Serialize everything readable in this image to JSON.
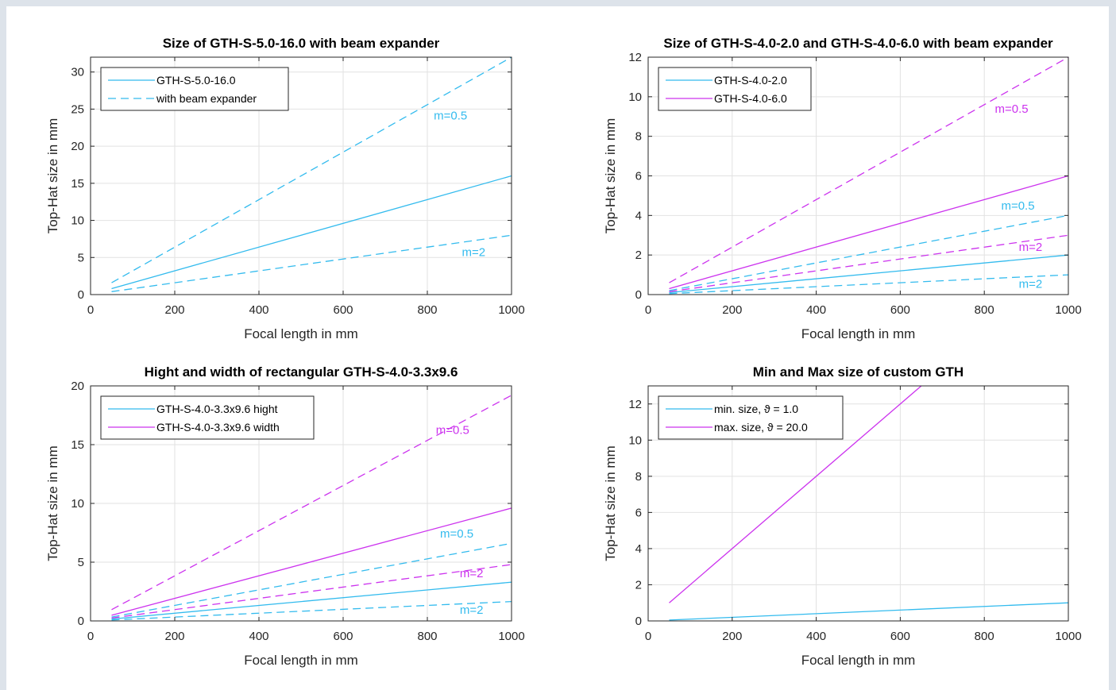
{
  "colors": {
    "cyan": "#33bbee",
    "magenta": "#cc33ee",
    "grid": "#e2e2e2",
    "axis": "#262626"
  },
  "chart_data": [
    {
      "type": "line",
      "title": "Size of GTH-S-5.0-16.0 with beam expander",
      "xlabel": "Focal length in mm",
      "ylabel": "Top-Hat size in mm",
      "xlim": [
        0,
        1000
      ],
      "ylim": [
        0,
        32
      ],
      "xticks": [
        0,
        200,
        400,
        600,
        800,
        1000
      ],
      "yticks": [
        0,
        5,
        10,
        15,
        20,
        25,
        30
      ],
      "grid": true,
      "legend_position": "top-left",
      "legend": [
        {
          "label": "GTH-S-5.0-16.0",
          "color": "cyan",
          "style": "solid"
        },
        {
          "label": "with beam expander",
          "color": "cyan",
          "style": "dashed"
        }
      ],
      "series": [
        {
          "name": "GTH-S-5.0-16.0",
          "color": "cyan",
          "style": "solid",
          "x": [
            50,
            1000
          ],
          "y": [
            0.8,
            16
          ]
        },
        {
          "color": "cyan",
          "style": "dashed",
          "x": [
            50,
            1000
          ],
          "y": [
            1.6,
            32
          ]
        },
        {
          "color": "cyan",
          "style": "dashed",
          "x": [
            50,
            1000
          ],
          "y": [
            0.4,
            8
          ]
        }
      ],
      "annotations": [
        {
          "text": "m=0.5",
          "x": 855,
          "y": 23.6,
          "color": "cyan"
        },
        {
          "text": "m=2",
          "x": 910,
          "y": 5.2,
          "color": "cyan"
        }
      ]
    },
    {
      "type": "line",
      "title": "Size of GTH-S-4.0-2.0 and GTH-S-4.0-6.0 with beam expander",
      "xlabel": "Focal length in mm",
      "ylabel": "Top-Hat size in mm",
      "xlim": [
        0,
        1000
      ],
      "ylim": [
        0,
        12
      ],
      "xticks": [
        0,
        200,
        400,
        600,
        800,
        1000
      ],
      "yticks": [
        0,
        2,
        4,
        6,
        8,
        10,
        12
      ],
      "grid": true,
      "legend_position": "top-left",
      "legend": [
        {
          "label": "GTH-S-4.0-2.0",
          "color": "cyan",
          "style": "solid"
        },
        {
          "label": "GTH-S-4.0-6.0",
          "color": "magenta",
          "style": "solid"
        }
      ],
      "series": [
        {
          "name": "GTH-S-4.0-2.0",
          "color": "cyan",
          "style": "solid",
          "x": [
            50,
            1000
          ],
          "y": [
            0.1,
            2
          ]
        },
        {
          "color": "cyan",
          "style": "dashed",
          "x": [
            50,
            1000
          ],
          "y": [
            0.2,
            4
          ]
        },
        {
          "color": "cyan",
          "style": "dashed",
          "x": [
            50,
            1000
          ],
          "y": [
            0.05,
            1
          ]
        },
        {
          "name": "GTH-S-4.0-6.0",
          "color": "magenta",
          "style": "solid",
          "x": [
            50,
            1000
          ],
          "y": [
            0.3,
            6
          ]
        },
        {
          "color": "magenta",
          "style": "dashed",
          "x": [
            50,
            1000
          ],
          "y": [
            0.6,
            12
          ]
        },
        {
          "color": "magenta",
          "style": "dashed",
          "x": [
            50,
            1000
          ],
          "y": [
            0.15,
            3
          ]
        }
      ],
      "annotations": [
        {
          "text": "m=0.5",
          "x": 865,
          "y": 9.2,
          "color": "magenta"
        },
        {
          "text": "m=0.5",
          "x": 880,
          "y": 4.3,
          "color": "cyan"
        },
        {
          "text": "m=2",
          "x": 910,
          "y": 2.2,
          "color": "magenta"
        },
        {
          "text": "m=2",
          "x": 910,
          "y": 0.35,
          "color": "cyan"
        }
      ]
    },
    {
      "type": "line",
      "title": "Hight and width of rectangular GTH-S-4.0-3.3x9.6",
      "xlabel": "Focal length in mm",
      "ylabel": "Top-Hat size in mm",
      "xlim": [
        0,
        1000
      ],
      "ylim": [
        0,
        20
      ],
      "xticks": [
        0,
        200,
        400,
        600,
        800,
        1000
      ],
      "yticks": [
        0,
        5,
        10,
        15,
        20
      ],
      "grid": true,
      "legend_position": "top-left",
      "legend": [
        {
          "label": "GTH-S-4.0-3.3x9.6 hight",
          "color": "cyan",
          "style": "solid"
        },
        {
          "label": "GTH-S-4.0-3.3x9.6 width",
          "color": "magenta",
          "style": "solid"
        }
      ],
      "series": [
        {
          "name": "GTH-S-4.0-3.3x9.6 hight",
          "color": "cyan",
          "style": "solid",
          "x": [
            50,
            1000
          ],
          "y": [
            0.165,
            3.3
          ]
        },
        {
          "color": "cyan",
          "style": "dashed",
          "x": [
            50,
            1000
          ],
          "y": [
            0.33,
            6.6
          ]
        },
        {
          "color": "cyan",
          "style": "dashed",
          "x": [
            50,
            1000
          ],
          "y": [
            0.0825,
            1.65
          ]
        },
        {
          "name": "GTH-S-4.0-3.3x9.6 width",
          "color": "magenta",
          "style": "solid",
          "x": [
            50,
            1000
          ],
          "y": [
            0.48,
            9.6
          ]
        },
        {
          "color": "magenta",
          "style": "dashed",
          "x": [
            50,
            1000
          ],
          "y": [
            0.96,
            19.2
          ]
        },
        {
          "color": "magenta",
          "style": "dashed",
          "x": [
            50,
            1000
          ],
          "y": [
            0.24,
            4.8
          ]
        }
      ],
      "annotations": [
        {
          "text": "m=0.5",
          "x": 860,
          "y": 15.9,
          "color": "magenta"
        },
        {
          "text": "m=0.5",
          "x": 870,
          "y": 7.1,
          "color": "cyan"
        },
        {
          "text": "m=2",
          "x": 905,
          "y": 3.7,
          "color": "magenta"
        },
        {
          "text": "m=2",
          "x": 905,
          "y": 0.6,
          "color": "cyan"
        }
      ]
    },
    {
      "type": "line",
      "title": "Min and Max size of custom GTH",
      "xlabel": "Focal length in mm",
      "ylabel": "Top-Hat size in mm",
      "xlim": [
        0,
        1000
      ],
      "ylim": [
        0,
        13
      ],
      "xticks": [
        0,
        200,
        400,
        600,
        800,
        1000
      ],
      "yticks": [
        0,
        2,
        4,
        6,
        8,
        10,
        12
      ],
      "grid": true,
      "legend_position": "top-left",
      "legend": [
        {
          "label": "min. size, ϑ = 1.0",
          "color": "cyan",
          "style": "solid"
        },
        {
          "label": "max. size, ϑ = 20.0",
          "color": "magenta",
          "style": "solid"
        }
      ],
      "series": [
        {
          "name": "min. size, ϑ = 1.0",
          "color": "cyan",
          "style": "solid",
          "x": [
            50,
            1000
          ],
          "y": [
            0.05,
            1.0
          ]
        },
        {
          "name": "max. size, ϑ = 20.0",
          "color": "magenta",
          "style": "solid",
          "x": [
            50,
            1000
          ],
          "y": [
            1.0,
            20.0
          ]
        }
      ],
      "annotations": []
    }
  ]
}
